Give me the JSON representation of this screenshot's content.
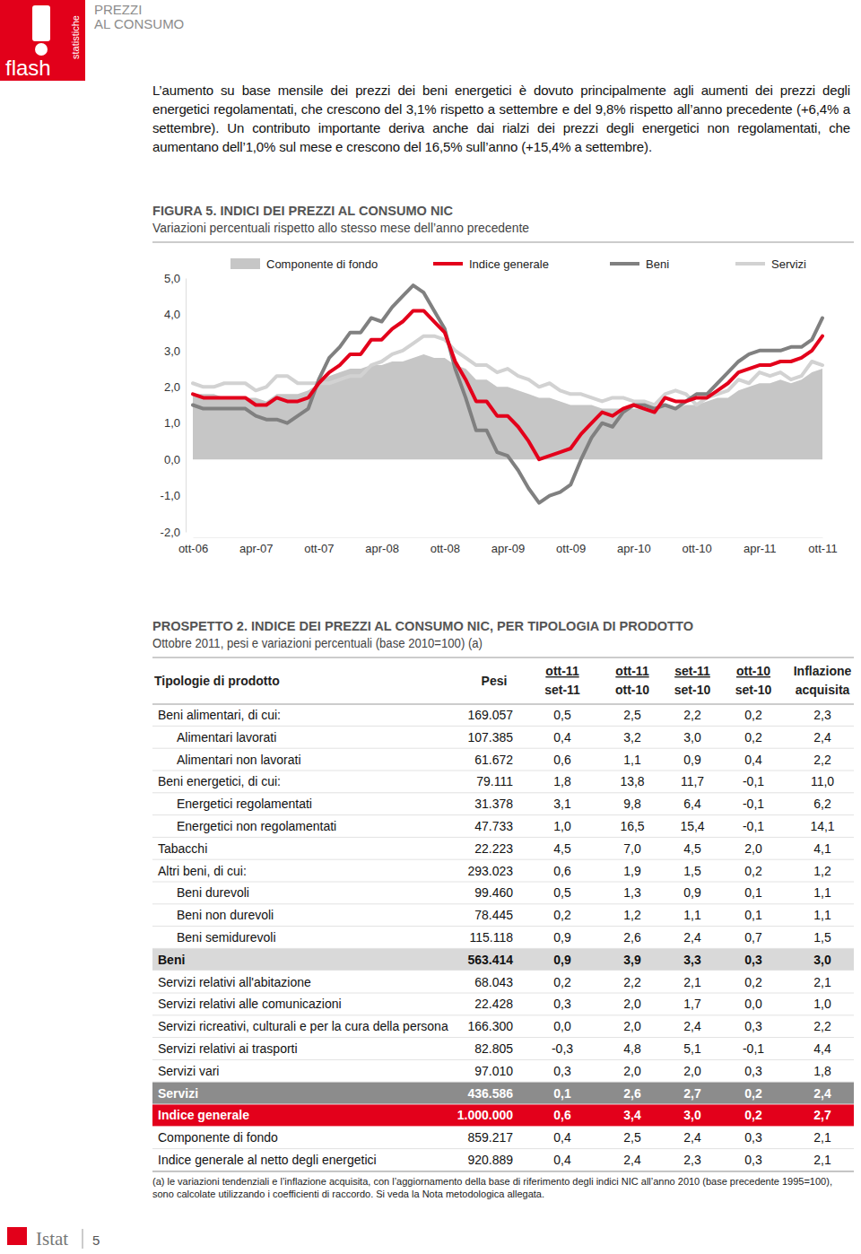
{
  "header": {
    "logo_top": "statistiche",
    "logo_bottom": "flash",
    "section": [
      "PREZZI",
      "AL CONSUMO"
    ]
  },
  "body_text": "L’aumento su base mensile dei prezzi dei beni energetici è dovuto principalmente agli aumenti dei prezzi degli energetici regolamentati, che crescono del 3,1% rispetto a settembre e del 9,8% rispetto all’anno precedente (+6,4% a settembre). Un contributo importante deriva anche dai rialzi dei prezzi degli energetici non regolamentati, che aumentano dell’1,0% sul mese e crescono del 16,5% sull’anno (+15,4% a settembre).",
  "chart_data": {
    "type": "line",
    "title": "FIGURA 5. INDICI DEI PREZZI AL CONSUMO NIC",
    "subtitle": "Variazioni percentuali rispetto allo stesso mese dell’anno precedente",
    "categories": [
      "ott-06",
      null,
      null,
      null,
      null,
      null,
      "apr-07",
      null,
      null,
      null,
      null,
      null,
      "ott-07",
      null,
      null,
      null,
      null,
      null,
      "apr-08",
      null,
      null,
      null,
      null,
      null,
      "ott-08",
      null,
      null,
      null,
      null,
      null,
      "apr-09",
      null,
      null,
      null,
      null,
      null,
      "ott-09",
      null,
      null,
      null,
      null,
      null,
      "apr-10",
      null,
      null,
      null,
      null,
      null,
      "ott-10",
      null,
      null,
      null,
      null,
      null,
      "apr-11",
      null,
      null,
      null,
      null,
      null,
      "ott-11"
    ],
    "series": [
      {
        "name": "Componente di fondo",
        "type": "area",
        "color": "#c6c6c6",
        "values": [
          1.8,
          1.8,
          1.8,
          1.7,
          1.7,
          1.7,
          1.7,
          1.6,
          1.8,
          1.8,
          1.8,
          1.9,
          2.1,
          2.3,
          2.4,
          2.5,
          2.5,
          2.6,
          2.6,
          2.7,
          2.7,
          2.8,
          2.9,
          2.8,
          2.8,
          2.6,
          2.5,
          2.2,
          2.2,
          2.0,
          2.0,
          1.9,
          1.8,
          1.7,
          1.7,
          1.6,
          1.5,
          1.5,
          1.5,
          1.4,
          1.4,
          1.4,
          1.4,
          1.4,
          1.4,
          1.5,
          1.4,
          1.5,
          1.5,
          1.6,
          1.7,
          1.7,
          1.9,
          2.0,
          2.1,
          2.1,
          2.2,
          2.1,
          2.2,
          2.4,
          2.5
        ]
      },
      {
        "name": "Indice generale",
        "type": "line",
        "color": "#e3001b",
        "values": [
          1.8,
          1.7,
          1.7,
          1.7,
          1.7,
          1.7,
          1.5,
          1.5,
          1.7,
          1.6,
          1.6,
          1.7,
          2.1,
          2.4,
          2.6,
          2.9,
          2.9,
          3.3,
          3.3,
          3.6,
          3.8,
          4.1,
          4.1,
          3.8,
          3.5,
          2.7,
          2.2,
          1.6,
          1.6,
          1.2,
          1.2,
          0.9,
          0.5,
          0.0,
          0.1,
          0.2,
          0.3,
          0.7,
          1.0,
          1.3,
          1.2,
          1.4,
          1.5,
          1.4,
          1.3,
          1.7,
          1.6,
          1.6,
          1.7,
          1.7,
          1.9,
          2.1,
          2.4,
          2.5,
          2.6,
          2.6,
          2.7,
          2.7,
          2.8,
          3.0,
          3.4
        ]
      },
      {
        "name": "Beni",
        "type": "line",
        "color": "#808080",
        "values": [
          1.5,
          1.4,
          1.4,
          1.4,
          1.4,
          1.4,
          1.2,
          1.1,
          1.1,
          1.0,
          1.2,
          1.4,
          2.2,
          2.8,
          3.1,
          3.5,
          3.5,
          3.9,
          3.8,
          4.2,
          4.5,
          4.8,
          4.6,
          4.1,
          3.6,
          2.5,
          1.7,
          0.8,
          0.8,
          0.2,
          0.1,
          -0.3,
          -0.8,
          -1.2,
          -1.0,
          -0.9,
          -0.7,
          0.0,
          0.6,
          1.0,
          0.9,
          1.3,
          1.5,
          1.5,
          1.4,
          1.5,
          1.4,
          1.6,
          1.8,
          1.8,
          2.1,
          2.4,
          2.7,
          2.9,
          3.0,
          3.0,
          3.0,
          3.1,
          3.1,
          3.3,
          3.9
        ]
      },
      {
        "name": "Servizi",
        "type": "line",
        "color": "#d2d2d2",
        "values": [
          2.1,
          2.0,
          2.0,
          2.1,
          2.1,
          2.1,
          1.9,
          2.0,
          2.3,
          2.3,
          2.1,
          2.1,
          2.1,
          2.1,
          2.2,
          2.3,
          2.3,
          2.6,
          2.7,
          2.9,
          3.0,
          3.2,
          3.4,
          3.4,
          3.3,
          3.0,
          2.8,
          2.6,
          2.6,
          2.4,
          2.5,
          2.3,
          2.2,
          2.0,
          2.1,
          1.9,
          1.8,
          1.8,
          1.7,
          1.6,
          1.7,
          1.7,
          1.6,
          1.6,
          1.5,
          1.8,
          1.9,
          1.8,
          1.5,
          1.7,
          1.8,
          1.9,
          2.2,
          2.1,
          2.4,
          2.3,
          2.4,
          2.2,
          2.3,
          2.7,
          2.6
        ]
      }
    ],
    "ylim": [
      -2,
      5
    ],
    "yticks": [
      {
        "value": -2,
        "label": "-2,0"
      },
      {
        "value": -1,
        "label": "-1,0"
      },
      {
        "value": 0,
        "label": "0,0"
      },
      {
        "value": 1,
        "label": "1,0"
      },
      {
        "value": 2,
        "label": "2,0"
      },
      {
        "value": 3,
        "label": "3,0"
      },
      {
        "value": 4,
        "label": "4,0"
      },
      {
        "value": 5,
        "label": "5,0"
      }
    ],
    "grid": false,
    "legend": "top"
  },
  "table": {
    "title": "PROSPETTO 2. INDICE DEI PREZZI AL CONSUMO NIC, PER TIPOLOGIA DI PRODOTTO",
    "subtitle": "Ottobre 2011, pesi e variazioni percentuali (base 2010=100) (a)",
    "header": [
      [
        "Tipologie di prodotto"
      ],
      [
        "Pesi"
      ],
      [
        "ott-11",
        "set-11"
      ],
      [
        "ott-11",
        "ott-10"
      ],
      [
        "set-11",
        "set-10"
      ],
      [
        "ott-10",
        "set-10"
      ],
      [
        "Inflazione",
        "acquisita"
      ]
    ],
    "rows": [
      [
        "Beni alimentari, di cui:",
        "169.057",
        "0,5",
        "2,5",
        "2,2",
        "0,2",
        "2,3"
      ],
      [
        "Alimentari lavorati",
        "107.385",
        "0,4",
        "3,2",
        "3,0",
        "0,2",
        "2,4"
      ],
      [
        "Alimentari non lavorati",
        "61.672",
        "0,6",
        "1,1",
        "0,9",
        "0,4",
        "2,2"
      ],
      [
        "Beni energetici, di cui:",
        "79.111",
        "1,8",
        "13,8",
        "11,7",
        "-0,1",
        "11,0"
      ],
      [
        "Energetici regolamentati",
        "31.378",
        "3,1",
        "9,8",
        "6,4",
        "-0,1",
        "6,2"
      ],
      [
        "Energetici non regolamentati",
        "47.733",
        "1,0",
        "16,5",
        "15,4",
        "-0,1",
        "14,1"
      ],
      [
        "Tabacchi",
        "22.223",
        "4,5",
        "7,0",
        "4,5",
        "2,0",
        "4,1"
      ],
      [
        "Altri beni, di cui:",
        "293.023",
        "0,6",
        "1,9",
        "1,5",
        "0,2",
        "1,2"
      ],
      [
        "Beni durevoli",
        "99.460",
        "0,5",
        "1,3",
        "0,9",
        "0,1",
        "1,1"
      ],
      [
        "Beni non durevoli",
        "78.445",
        "0,2",
        "1,2",
        "1,1",
        "0,1",
        "1,1"
      ],
      [
        "Beni semidurevoli",
        "115.118",
        "0,9",
        "2,6",
        "2,4",
        "0,7",
        "1,5"
      ],
      [
        "Beni",
        "563.414",
        "0,9",
        "3,9",
        "3,3",
        "0,3",
        "3,0"
      ],
      [
        "Servizi relativi all'abitazione",
        "68.043",
        "0,2",
        "2,2",
        "2,1",
        "0,2",
        "2,1"
      ],
      [
        "Servizi relativi alle comunicazioni",
        "22.428",
        "0,3",
        "2,0",
        "1,7",
        "0,0",
        "1,0"
      ],
      [
        "Servizi ricreativi, culturali e per la cura della persona",
        "166.300",
        "0,0",
        "2,0",
        "2,4",
        "0,3",
        "2,2"
      ],
      [
        "Servizi relativi ai trasporti",
        "82.805",
        "-0,3",
        "4,8",
        "5,1",
        "-0,1",
        "4,4"
      ],
      [
        "Servizi vari",
        "97.010",
        "0,3",
        "2,0",
        "2,0",
        "0,3",
        "1,8"
      ],
      [
        "Servizi",
        "436.586",
        "0,1",
        "2,6",
        "2,7",
        "0,2",
        "2,4"
      ],
      [
        "Indice generale",
        "1.000.000",
        "0,6",
        "3,4",
        "3,0",
        "0,2",
        "2,7"
      ],
      [
        "Componente di fondo",
        "859.217",
        "0,4",
        "2,5",
        "2,4",
        "0,3",
        "2,1"
      ],
      [
        "Indice generale al netto degli energetici",
        "920.889",
        "0,4",
        "2,4",
        "2,3",
        "0,3",
        "2,1"
      ]
    ],
    "footnote": "(a) le variazioni tendenziali e l’inflazione acquisita, con l’aggiornamento della base di riferimento degli indici NIC all’anno 2010 (base precedente 1995=100), sono calcolate utilizzando i coefficienti di raccordo. Si veda la Nota metodologica allegata."
  },
  "footer": {
    "publisher": "Istat",
    "page": "5"
  }
}
